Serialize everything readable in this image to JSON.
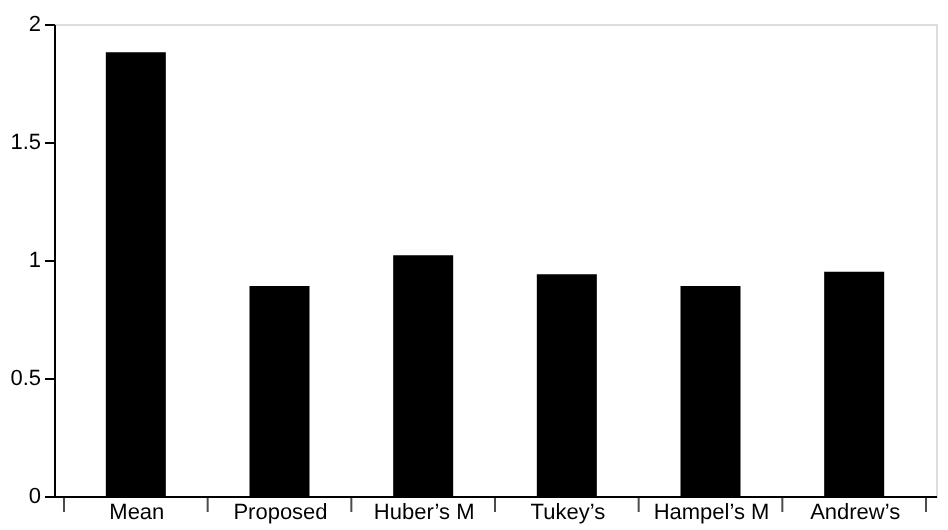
{
  "chart_data": {
    "type": "bar",
    "categories": [
      "Mean",
      "Proposed",
      "Huber’s M",
      "Tukey’s",
      "Hampel’s M",
      "Andrew’s"
    ],
    "values": [
      1.88,
      0.89,
      1.02,
      0.94,
      0.89,
      0.95
    ],
    "color": "#000000",
    "ylim": [
      0,
      2
    ],
    "yticks": [
      0,
      0.5,
      1,
      1.5,
      2
    ],
    "grid": false
  }
}
